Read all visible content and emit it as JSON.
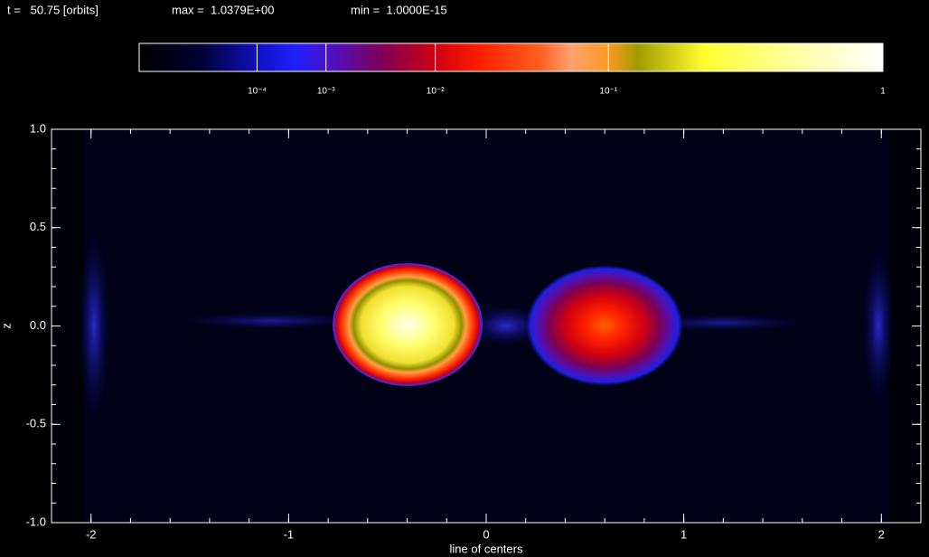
{
  "chart_data": {
    "type": "image",
    "annotations": [
      "t =   50.75 [orbits]",
      "max =  1.0379E+00",
      "min =  1.0000E-15"
    ],
    "xlabel": "line of centers",
    "ylabel": "z",
    "xlim": [
      -2.2,
      2.2
    ],
    "xticks": [
      -2,
      -1,
      0,
      1,
      2
    ],
    "x_minor_per_major": 5,
    "ylim": [
      -1,
      1
    ],
    "yticks": [
      {
        "value": -1,
        "label": "-1.0"
      },
      {
        "value": -0.5,
        "label": "-0.5"
      },
      {
        "value": 0,
        "label": "0.0"
      },
      {
        "value": 0.5,
        "label": "0.5"
      },
      {
        "value": 1,
        "label": "1.0"
      }
    ],
    "y_minor_per_major": 5,
    "colorbar": {
      "scale": "power",
      "exponent": 0.2,
      "lim": [
        0,
        1
      ],
      "ticks": [
        {
          "value": 0.0001,
          "label": "10⁻⁴"
        },
        {
          "value": 0.001,
          "label": "10⁻³"
        },
        {
          "value": 0.01,
          "label": "10⁻²"
        },
        {
          "value": 0.1,
          "label": "10⁻¹"
        },
        1
      ]
    }
  }
}
